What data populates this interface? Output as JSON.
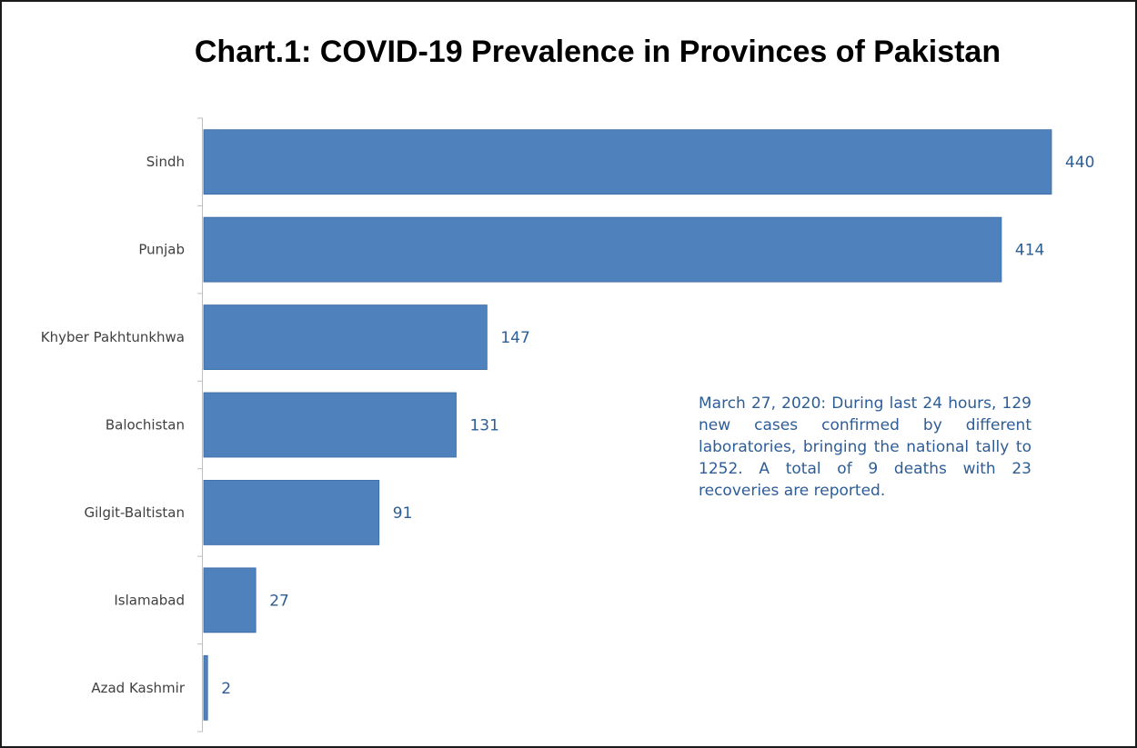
{
  "chart_data": {
    "type": "bar",
    "orientation": "horizontal",
    "title": "Chart.1: COVID-19 Prevalence in Provinces of Pakistan",
    "categories": [
      "Sindh",
      "Punjab",
      "Khyber Pakhtunkhwa",
      "Balochistan",
      "Gilgit-Baltistan",
      "Islamabad",
      "Azad Kashmir"
    ],
    "values": [
      440,
      414,
      147,
      131,
      91,
      27,
      2
    ],
    "data_labels": true,
    "xlim": [
      0,
      440
    ],
    "grid": false,
    "legend": "none",
    "annotation": "March 27, 2020: During last 24 hours, 129 new cases confirmed by different laboratories, bringing the national tally to 1252. A total of 9 deaths with 23 recoveries are reported.",
    "colors": {
      "bar": "#4f81bd",
      "bar_edge": "#3b6aa3",
      "data_label": "#2e5d96",
      "axis": "#bfbfbf"
    }
  }
}
